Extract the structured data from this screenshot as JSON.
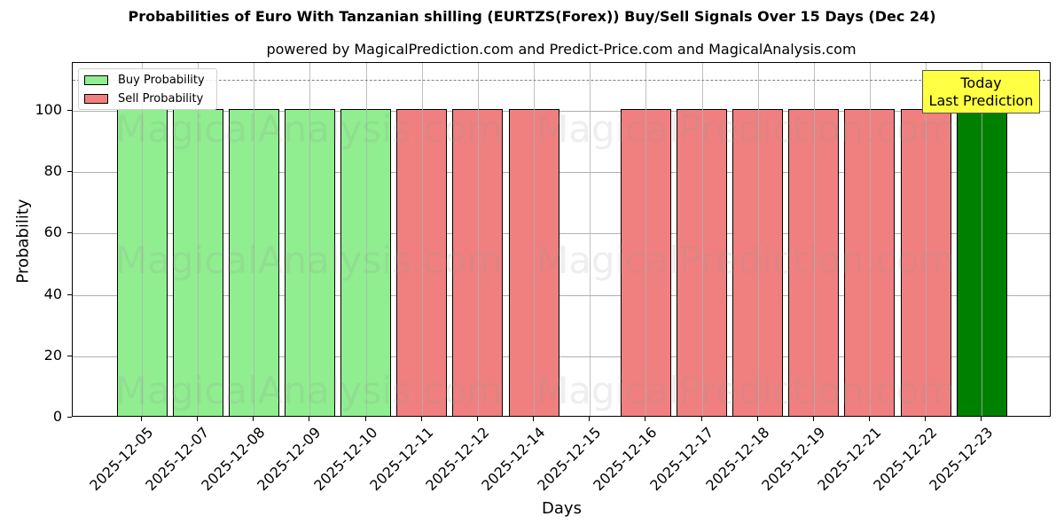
{
  "chart_data": {
    "type": "bar",
    "title": "Probabilities of Euro With Tanzanian shilling (EURTZS(Forex)) Buy/Sell Signals Over 15 Days (Dec 24)",
    "subtitle": "powered by MagicalPrediction.com and Predict-Price.com and MagicalAnalysis.com",
    "xlabel": "Days",
    "ylabel": "Probability",
    "ylim": [
      0,
      115.6
    ],
    "yticks": [
      0,
      20,
      40,
      60,
      80,
      100
    ],
    "grid": true,
    "legend_position": "upper left",
    "reference_line": {
      "y": 110,
      "style": "dashed",
      "color": "#808080"
    },
    "categories": [
      "2025-12-05",
      "2025-12-07",
      "2025-12-08",
      "2025-12-09",
      "2025-12-10",
      "2025-12-11",
      "2025-12-12",
      "2025-12-14",
      "2025-12-15",
      "2025-12-16",
      "2025-12-17",
      "2025-12-18",
      "2025-12-19",
      "2025-12-21",
      "2025-12-22",
      "2025-12-23"
    ],
    "series": [
      {
        "name": "Buy Probability",
        "color": "#90ee90",
        "values": [
          100,
          100,
          100,
          100,
          100,
          0,
          0,
          0,
          0,
          0,
          0,
          0,
          0,
          0,
          0,
          100
        ]
      },
      {
        "name": "Sell Probability",
        "color": "#f08080",
        "values": [
          0,
          0,
          0,
          0,
          0,
          100,
          100,
          100,
          0,
          100,
          100,
          100,
          100,
          100,
          100,
          0
        ]
      }
    ],
    "bar_colors": [
      "#90ee90",
      "#90ee90",
      "#90ee90",
      "#90ee90",
      "#90ee90",
      "#f08080",
      "#f08080",
      "#f08080",
      null,
      "#f08080",
      "#f08080",
      "#f08080",
      "#f08080",
      "#f08080",
      "#f08080",
      "#008000"
    ],
    "annotations": [
      {
        "text": "Today\nLast Prediction",
        "x": "2025-12-23",
        "background": "#ffff44"
      }
    ],
    "watermarks": [
      "MagicalAnalysis.com",
      "MagicalPrediction.com"
    ]
  },
  "labels": {
    "legend_buy": "Buy Probability",
    "legend_sell": "Sell Probability",
    "annot_line1": "Today",
    "annot_line2": "Last Prediction",
    "wm_left": "MagicalAnalysis.com",
    "wm_right": "MagicalPrediction.com"
  }
}
